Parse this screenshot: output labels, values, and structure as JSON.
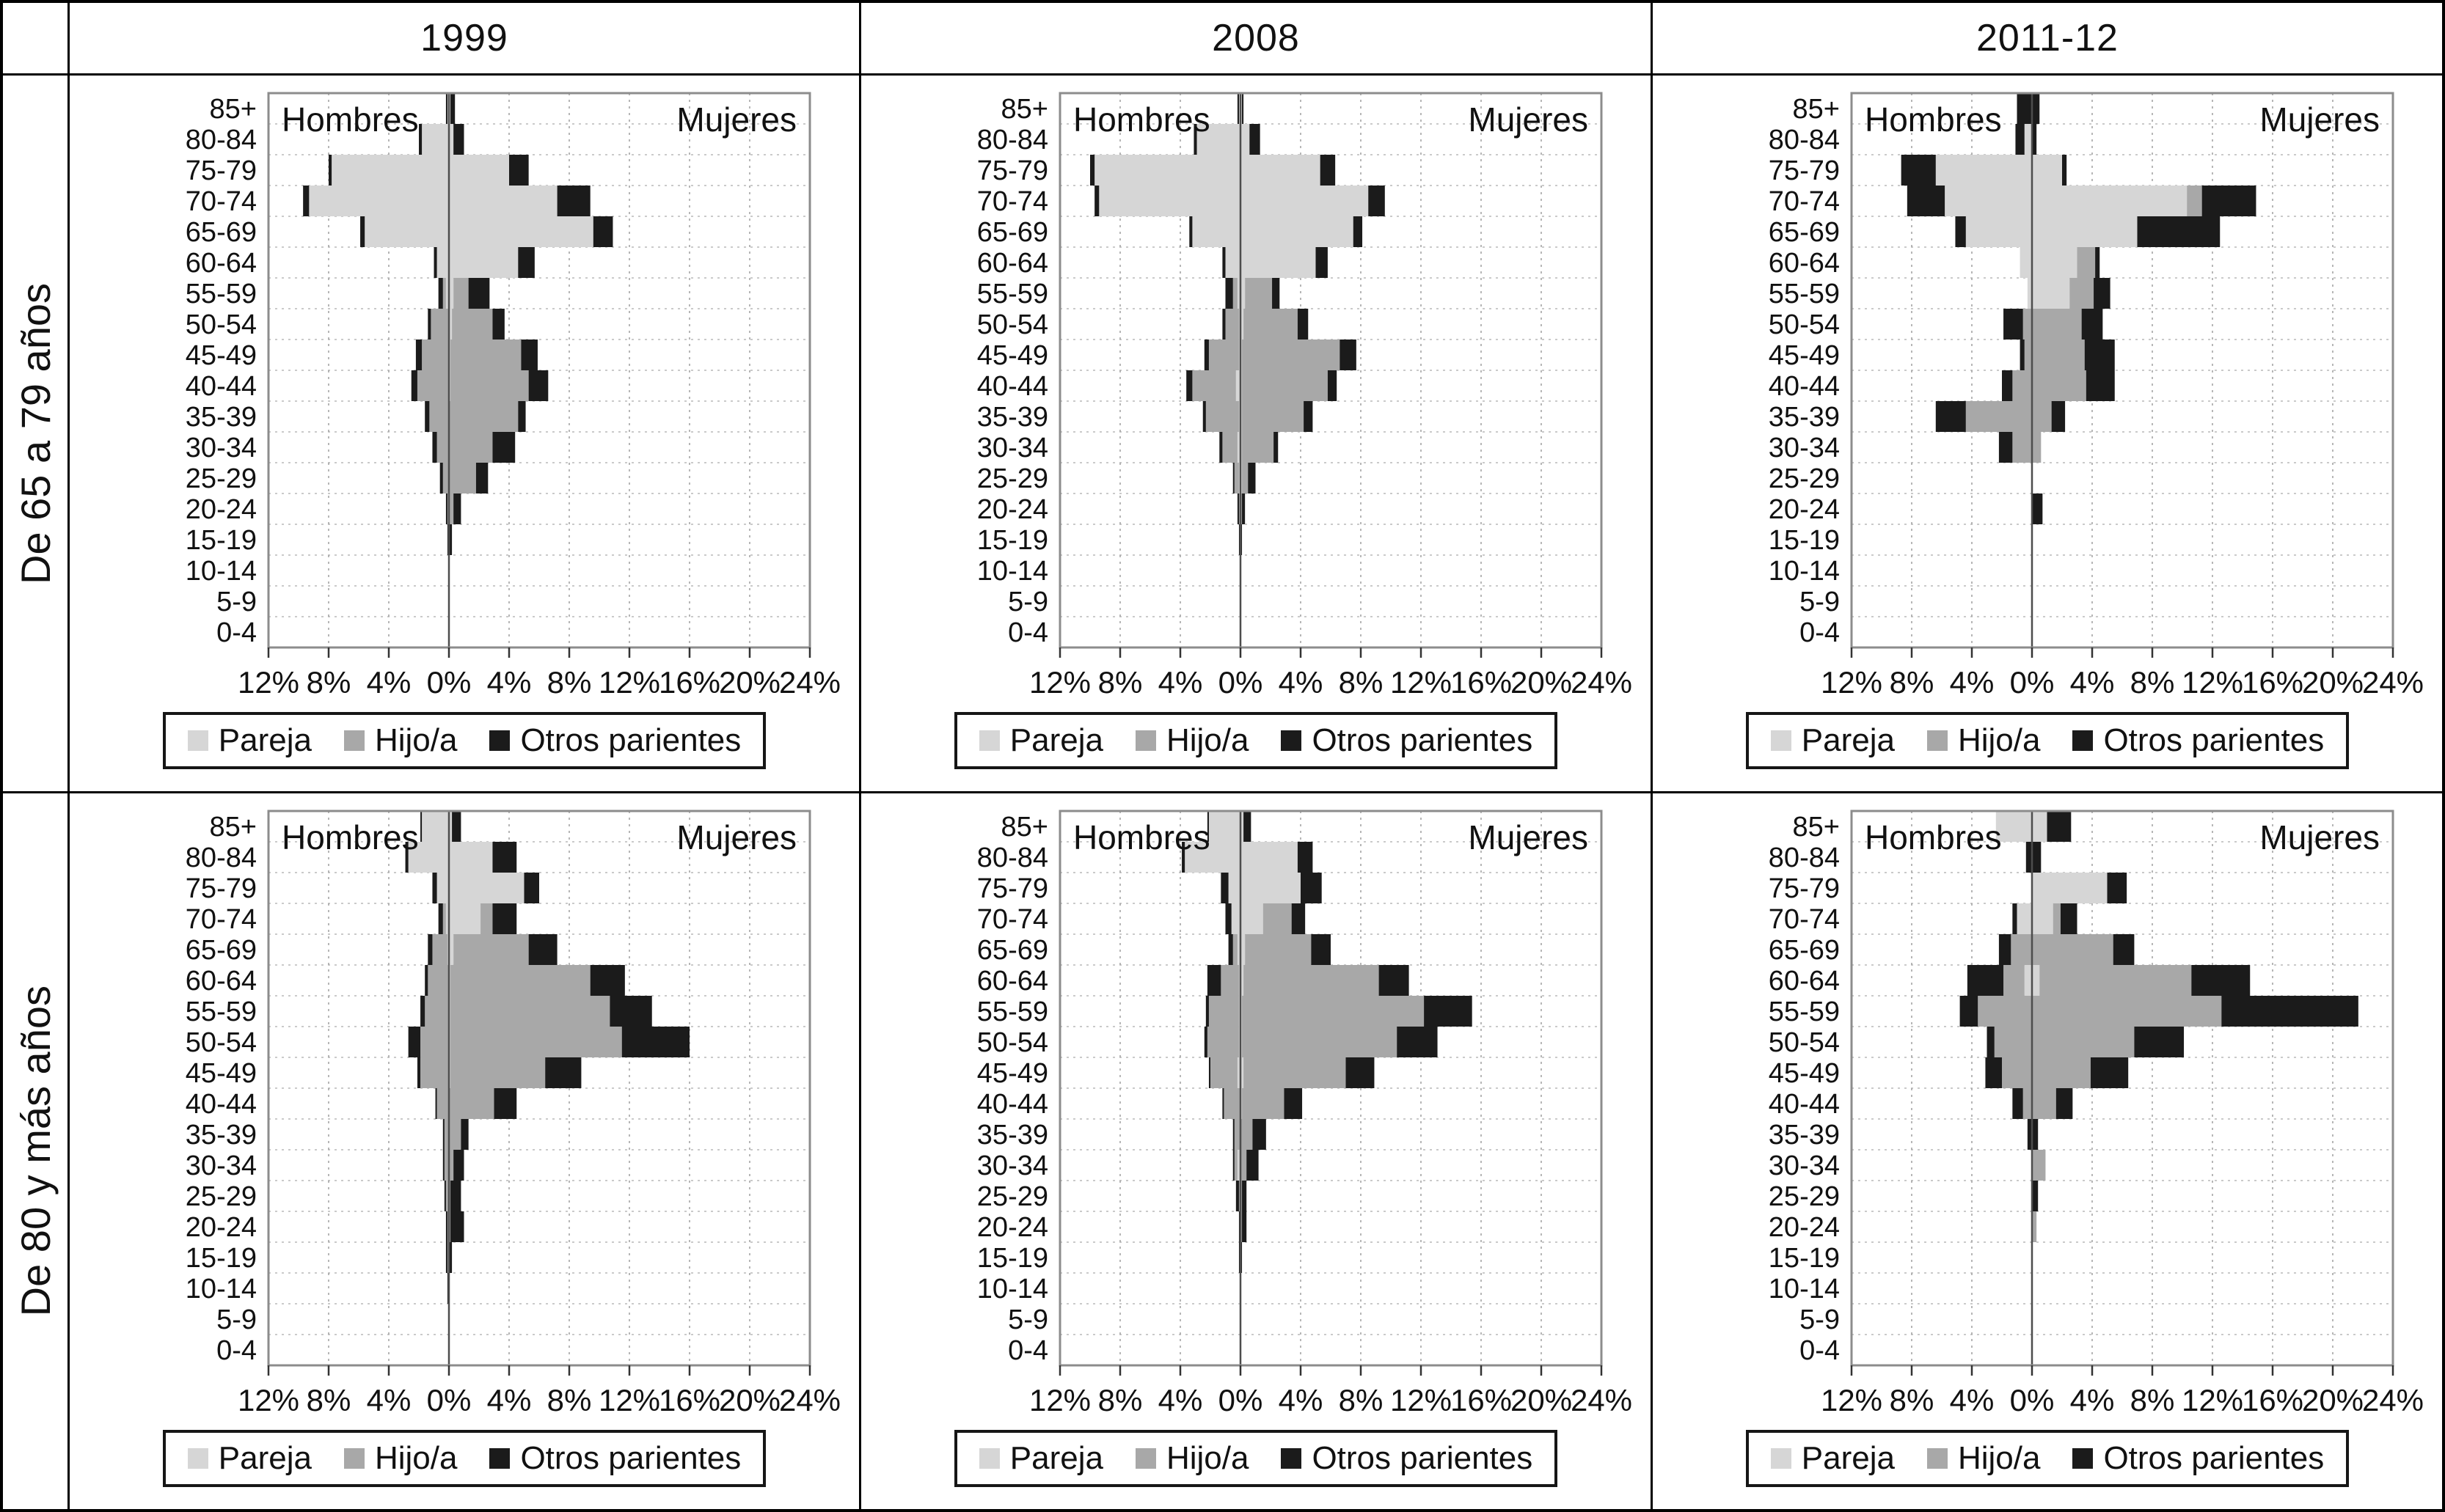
{
  "header": {
    "years": [
      "1999",
      "2008",
      "2011-12"
    ]
  },
  "row_labels": [
    "De 65 a 79 años",
    "De 80 y más años"
  ],
  "side_labels": {
    "left": "Hombres",
    "right": "Mujeres"
  },
  "legend": {
    "items": [
      {
        "label": "Pareja",
        "color": "#d6d6d6"
      },
      {
        "label": "Hijo/a",
        "color": "#a8a8a8"
      },
      {
        "label": "Otros parientes",
        "color": "#1b1b1b"
      }
    ]
  },
  "axis": {
    "x_min": -12,
    "x_max": 24,
    "x_tick_values": [
      -12,
      -8,
      -4,
      0,
      4,
      8,
      12,
      16,
      20,
      24
    ],
    "x_tick_labels": [
      "12%",
      "8%",
      "4%",
      "0%",
      "4%",
      "8%",
      "12%",
      "16%",
      "20%",
      "24%"
    ]
  },
  "chart_data": [
    {
      "id": "1999-65-79",
      "type": "bar",
      "panel_col": "1999",
      "panel_row": "De 65 a 79 años",
      "categories": [
        "85+",
        "80-84",
        "75-79",
        "70-74",
        "65-69",
        "60-64",
        "55-59",
        "50-54",
        "45-49",
        "40-44",
        "35-39",
        "30-34",
        "25-29",
        "20-24",
        "15-19",
        "10-14",
        "5-9",
        "0-4"
      ],
      "men": {
        "pareja": [
          0.1,
          1.8,
          7.8,
          9.3,
          5.6,
          0.8,
          0.2,
          0,
          0,
          0,
          0,
          0,
          0,
          0,
          0,
          0,
          0,
          0
        ],
        "hijo": [
          0,
          0,
          0,
          0,
          0,
          0,
          0.2,
          1.2,
          1.8,
          2.1,
          1.3,
          0.8,
          0.4,
          0.1,
          0,
          0,
          0,
          0
        ],
        "otros": [
          0.1,
          0.2,
          0.2,
          0.4,
          0.3,
          0.2,
          0.3,
          0.2,
          0.4,
          0.4,
          0.3,
          0.3,
          0.2,
          0.1,
          0.1,
          0,
          0,
          0
        ]
      },
      "women": {
        "pareja": [
          0.1,
          0.3,
          4.0,
          7.2,
          9.6,
          4.6,
          0.3,
          0.2,
          0.1,
          0.1,
          0,
          0,
          0,
          0,
          0,
          0,
          0,
          0
        ],
        "hijo": [
          0,
          0,
          0,
          0,
          0,
          0,
          1.0,
          2.7,
          4.7,
          5.2,
          4.6,
          2.9,
          1.8,
          0.3,
          0,
          0,
          0,
          0
        ],
        "otros": [
          0.3,
          0.7,
          1.3,
          2.2,
          1.3,
          1.1,
          1.4,
          0.8,
          1.1,
          1.3,
          0.5,
          1.5,
          0.8,
          0.5,
          0.2,
          0,
          0,
          0
        ]
      }
    },
    {
      "id": "2008-65-79",
      "type": "bar",
      "panel_col": "2008",
      "panel_row": "De 65 a 79 años",
      "categories": [
        "85+",
        "80-84",
        "75-79",
        "70-74",
        "65-69",
        "60-64",
        "55-59",
        "50-54",
        "45-49",
        "40-44",
        "35-39",
        "30-34",
        "25-29",
        "20-24",
        "15-19",
        "10-14",
        "5-9",
        "0-4"
      ],
      "men": {
        "pareja": [
          0.1,
          2.9,
          9.7,
          9.4,
          3.2,
          1.0,
          0.2,
          0.1,
          0.1,
          0.3,
          0.1,
          0.2,
          0.1,
          0,
          0,
          0,
          0,
          0
        ],
        "hijo": [
          0,
          0,
          0,
          0,
          0,
          0,
          0.3,
          0.9,
          2.0,
          2.9,
          2.2,
          1.0,
          0.3,
          0.1,
          0,
          0,
          0,
          0
        ],
        "otros": [
          0.1,
          0.2,
          0.3,
          0.3,
          0.2,
          0.2,
          0.5,
          0.2,
          0.3,
          0.4,
          0.2,
          0.2,
          0.1,
          0.1,
          0.1,
          0,
          0,
          0
        ]
      },
      "women": {
        "pareja": [
          0.1,
          0.6,
          5.3,
          8.5,
          7.5,
          5.0,
          0.3,
          0.2,
          0.1,
          0.1,
          0.1,
          0.1,
          0.1,
          0,
          0,
          0,
          0,
          0
        ],
        "hijo": [
          0,
          0,
          0,
          0,
          0,
          0,
          1.8,
          3.6,
          6.5,
          5.7,
          4.1,
          2.1,
          0.4,
          0.1,
          0,
          0,
          0,
          0
        ],
        "otros": [
          0.1,
          0.7,
          1.0,
          1.1,
          0.6,
          0.8,
          0.5,
          0.7,
          1.1,
          0.6,
          0.6,
          0.3,
          0.5,
          0.2,
          0.1,
          0,
          0,
          0
        ]
      }
    },
    {
      "id": "2011-12-65-79",
      "type": "bar",
      "panel_col": "2011-12",
      "panel_row": "De 65 a 79 años",
      "categories": [
        "85+",
        "80-84",
        "75-79",
        "70-74",
        "65-69",
        "60-64",
        "55-59",
        "50-54",
        "45-49",
        "40-44",
        "35-39",
        "30-34",
        "25-29",
        "20-24",
        "15-19",
        "10-14",
        "5-9",
        "0-4"
      ],
      "men": {
        "pareja": [
          0,
          0.5,
          6.4,
          5.8,
          4.4,
          0.8,
          0.3,
          0,
          0,
          0,
          0,
          0,
          0,
          0,
          0,
          0,
          0,
          0
        ],
        "hijo": [
          0,
          0,
          0,
          0,
          0,
          0,
          0,
          0.6,
          0.5,
          1.3,
          4.4,
          1.3,
          0,
          0,
          0,
          0,
          0,
          0
        ],
        "otros": [
          1.0,
          0.6,
          2.3,
          2.5,
          0.7,
          0,
          0,
          1.3,
          0.3,
          0.7,
          2.0,
          0.9,
          0,
          0,
          0,
          0,
          0,
          0
        ]
      },
      "women": {
        "pareja": [
          0,
          0,
          2.0,
          10.3,
          7.0,
          3.0,
          2.5,
          0,
          0,
          0,
          0,
          0,
          0,
          0,
          0,
          0,
          0,
          0
        ],
        "hijo": [
          0,
          0,
          0,
          1.0,
          0,
          1.2,
          1.6,
          3.3,
          3.5,
          3.6,
          1.3,
          0.6,
          0,
          0,
          0,
          0,
          0,
          0
        ],
        "otros": [
          0.5,
          0.3,
          0.3,
          3.6,
          5.5,
          0.3,
          1.1,
          1.4,
          2.0,
          1.9,
          0.9,
          0,
          0,
          0.7,
          0,
          0,
          0,
          0
        ]
      }
    },
    {
      "id": "1999-80",
      "type": "bar",
      "panel_col": "1999",
      "panel_row": "De 80 y más años",
      "categories": [
        "85+",
        "80-84",
        "75-79",
        "70-74",
        "65-69",
        "60-64",
        "55-59",
        "50-54",
        "45-49",
        "40-44",
        "35-39",
        "30-34",
        "25-29",
        "20-24",
        "15-19",
        "10-14",
        "5-9",
        "0-4"
      ],
      "men": {
        "pareja": [
          1.8,
          2.7,
          0.8,
          0.2,
          0.1,
          0,
          0,
          0,
          0,
          0,
          0,
          0,
          0,
          0,
          0,
          0,
          0,
          0
        ],
        "hijo": [
          0,
          0,
          0,
          0.2,
          1.0,
          1.4,
          1.6,
          1.9,
          1.9,
          0.8,
          0.3,
          0.3,
          0.2,
          0.1,
          0.1,
          0,
          0,
          0
        ],
        "otros": [
          0.1,
          0.2,
          0.3,
          0.3,
          0.3,
          0.2,
          0.3,
          0.8,
          0.2,
          0.1,
          0.1,
          0.1,
          0.1,
          0.1,
          0.1,
          0.1,
          0,
          0
        ]
      },
      "women": {
        "pareja": [
          0.2,
          2.9,
          5.0,
          2.1,
          0.3,
          0.1,
          0.1,
          0.1,
          0.1,
          0,
          0,
          0,
          0,
          0,
          0,
          0,
          0,
          0
        ],
        "hijo": [
          0,
          0,
          0,
          0.8,
          5.0,
          9.3,
          10.6,
          11.4,
          6.3,
          3.0,
          0.8,
          0.3,
          0.1,
          0.1,
          0,
          0,
          0,
          0
        ],
        "otros": [
          0.6,
          1.6,
          1.0,
          1.6,
          1.9,
          2.3,
          2.8,
          4.5,
          2.4,
          1.5,
          0.5,
          0.7,
          0.7,
          0.9,
          0.2,
          0,
          0,
          0
        ]
      }
    },
    {
      "id": "2008-80",
      "type": "bar",
      "panel_col": "2008",
      "panel_row": "De 80 y más años",
      "categories": [
        "85+",
        "80-84",
        "75-79",
        "70-74",
        "65-69",
        "60-64",
        "55-59",
        "50-54",
        "45-49",
        "40-44",
        "35-39",
        "30-34",
        "25-29",
        "20-24",
        "15-19",
        "10-14",
        "5-9",
        "0-4"
      ],
      "men": {
        "pareja": [
          2.1,
          3.7,
          0.8,
          0.6,
          0.2,
          0.1,
          0.1,
          0.1,
          0.2,
          0,
          0,
          0.2,
          0,
          0,
          0,
          0,
          0,
          0
        ],
        "hijo": [
          0,
          0,
          0,
          0,
          0.3,
          1.2,
          2.0,
          2.1,
          1.8,
          1.1,
          0.4,
          0.2,
          0.1,
          0,
          0,
          0,
          0,
          0
        ],
        "otros": [
          0.1,
          0.2,
          0.5,
          0.4,
          0.3,
          0.9,
          0.2,
          0.2,
          0.1,
          0.1,
          0.1,
          0.1,
          0.2,
          0.1,
          0.1,
          0,
          0,
          0
        ]
      },
      "women": {
        "pareja": [
          0.2,
          3.8,
          4.0,
          1.5,
          0.3,
          0.2,
          0.1,
          0.1,
          0.2,
          0.1,
          0,
          0,
          0,
          0,
          0,
          0,
          0,
          0
        ],
        "hijo": [
          0,
          0,
          0,
          1.9,
          4.4,
          9.0,
          12.1,
          10.3,
          6.8,
          2.8,
          0.8,
          0.4,
          0.1,
          0.1,
          0,
          0,
          0,
          0
        ],
        "otros": [
          0.5,
          1.0,
          1.4,
          0.9,
          1.3,
          2.0,
          3.2,
          2.7,
          1.9,
          1.2,
          0.9,
          0.8,
          0.3,
          0.3,
          0.1,
          0,
          0,
          0
        ]
      }
    },
    {
      "id": "2011-12-80",
      "type": "bar",
      "panel_col": "2011-12",
      "panel_row": "De 80 y más años",
      "categories": [
        "85+",
        "80-84",
        "75-79",
        "70-74",
        "65-69",
        "60-64",
        "55-59",
        "50-54",
        "45-49",
        "40-44",
        "35-39",
        "30-34",
        "25-29",
        "20-24",
        "15-19",
        "10-14",
        "5-9",
        "0-4"
      ],
      "men": {
        "pareja": [
          2.4,
          0,
          0,
          1.0,
          0,
          0.5,
          0,
          0,
          0,
          0,
          0,
          0,
          0,
          0,
          0,
          0,
          0,
          0
        ],
        "hijo": [
          0,
          0,
          0,
          0,
          1.4,
          1.4,
          3.6,
          2.5,
          2.0,
          0.6,
          0,
          0,
          0,
          0,
          0,
          0,
          0,
          0
        ],
        "otros": [
          0,
          0.4,
          0,
          0.3,
          0.8,
          2.4,
          1.2,
          0.5,
          1.1,
          0.7,
          0.3,
          0,
          0,
          0,
          0,
          0,
          0,
          0
        ]
      },
      "women": {
        "pareja": [
          1.0,
          0,
          5.0,
          1.4,
          0,
          0.5,
          0,
          0,
          0,
          0,
          0,
          0,
          0,
          0,
          0,
          0,
          0,
          0
        ],
        "hijo": [
          0,
          0,
          0,
          0.5,
          5.4,
          10.1,
          12.6,
          6.8,
          3.9,
          1.6,
          0,
          0.9,
          0,
          0.3,
          0,
          0,
          0,
          0
        ],
        "otros": [
          1.6,
          0.6,
          1.3,
          1.1,
          1.4,
          3.9,
          9.1,
          3.3,
          2.5,
          1.1,
          0.4,
          0,
          0.4,
          0,
          0,
          0,
          0,
          0
        ]
      }
    }
  ]
}
